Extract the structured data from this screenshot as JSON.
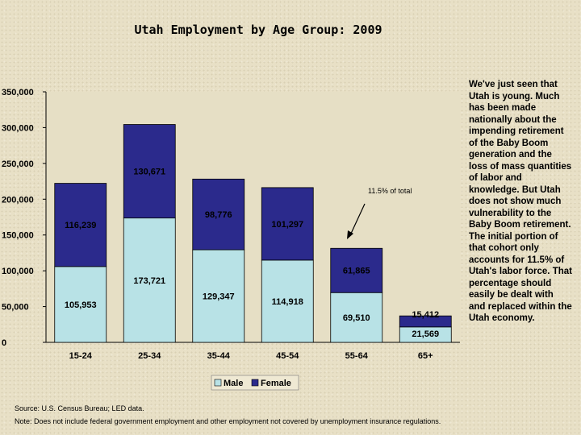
{
  "chart_data": {
    "type": "bar",
    "stacked": true,
    "title": "Utah Employment by Age Group: 2009",
    "categories": [
      "15-24",
      "25-34",
      "35-44",
      "45-54",
      "55-64",
      "65+"
    ],
    "series": [
      {
        "name": "Male",
        "values": [
          105953,
          173721,
          129347,
          114918,
          69510,
          21569
        ],
        "labels": [
          "105,953",
          "173,721",
          "129,347",
          "114,918",
          "69,510",
          "21,569"
        ],
        "color": "#b8e2e6"
      },
      {
        "name": "Female",
        "values": [
          116239,
          130671,
          98776,
          101297,
          61865,
          15412
        ],
        "labels": [
          "116,239",
          "130,671",
          "98,776",
          "101,297",
          "61,865",
          "15,412"
        ],
        "color": "#2b2a8c"
      }
    ],
    "ylim": [
      0,
      350000
    ],
    "yticks": [
      0,
      50000,
      100000,
      150000,
      200000,
      250000,
      300000,
      350000
    ],
    "ytick_labels": [
      "0",
      "50,000",
      "100,000",
      "150,000",
      "200,000",
      "250,000",
      "300,000",
      "350,000"
    ],
    "annotation": "11.5% of total",
    "legend": [
      "Male",
      "Female"
    ],
    "legend_position": "bottom"
  },
  "sidebar_text": "We've just seen that Utah is young. Much has been made nationally about the impending retirement of the Baby Boom generation and the loss of mass quantities of labor and knowledge. But Utah does not show much vulnerability to the Baby Boom retirement. The initial portion of that cohort only accounts for 11.5% of Utah's labor force. That percentage should easily be dealt with and replaced within the Utah economy.",
  "source": "Source: U.S. Census Bureau; LED data.",
  "note": "Note: Does not include federal government employment and other employment not covered by unemployment insurance regulations."
}
